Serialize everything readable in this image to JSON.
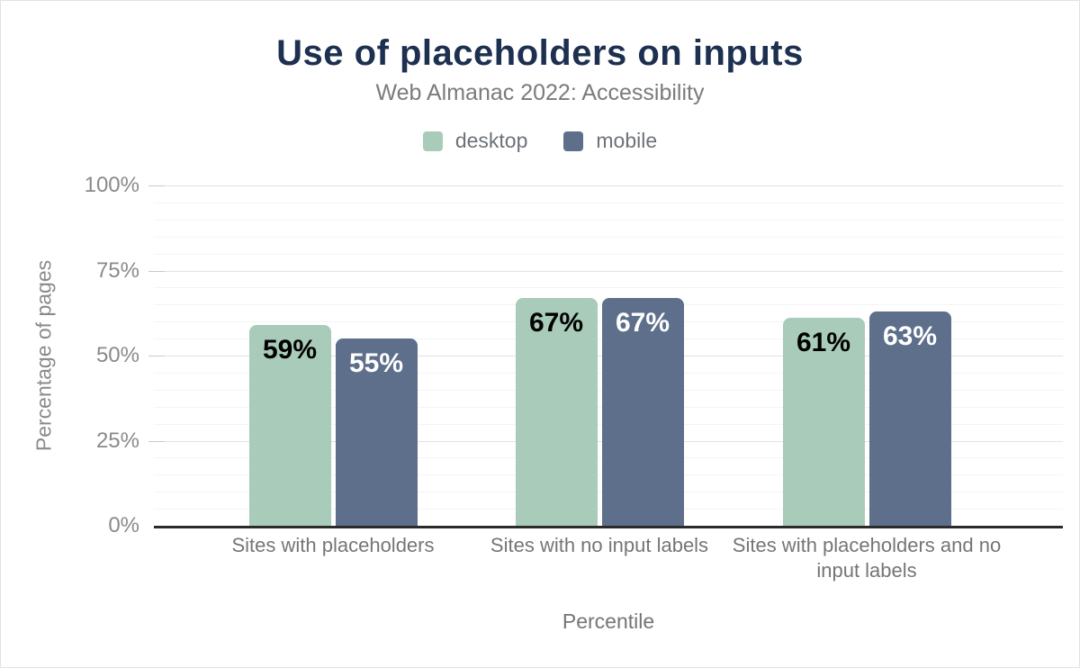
{
  "chart_data": {
    "type": "bar",
    "title": "Use of placeholders on inputs",
    "subtitle": "Web Almanac 2022: Accessibility",
    "categories": [
      "Sites with placeholders",
      "Sites with no input labels",
      "Sites with placeholders and no input labels"
    ],
    "series": [
      {
        "name": "desktop",
        "color": "#a9cbb9",
        "label_color": "#000000",
        "values": [
          59,
          67,
          61
        ]
      },
      {
        "name": "mobile",
        "color": "#5d6f8b",
        "label_color": "#ffffff",
        "values": [
          55,
          67,
          63
        ]
      }
    ],
    "value_suffix": "%",
    "xlabel": "Percentile",
    "ylabel": "Percentage of pages",
    "ylim": [
      0,
      100
    ],
    "yticks": [
      0,
      25,
      50,
      75,
      100
    ],
    "ytick_suffix": "%",
    "grid": {
      "major_step": 25,
      "minor_step": 5,
      "shown": true
    },
    "legend_position": "top",
    "colors": {
      "title": "#1d3050",
      "subtitle": "#7b7b7b",
      "axis_line": "#2b2b2b",
      "major_gridline": "#e2e2e2",
      "minor_gridline": "#f4f4f4"
    }
  }
}
